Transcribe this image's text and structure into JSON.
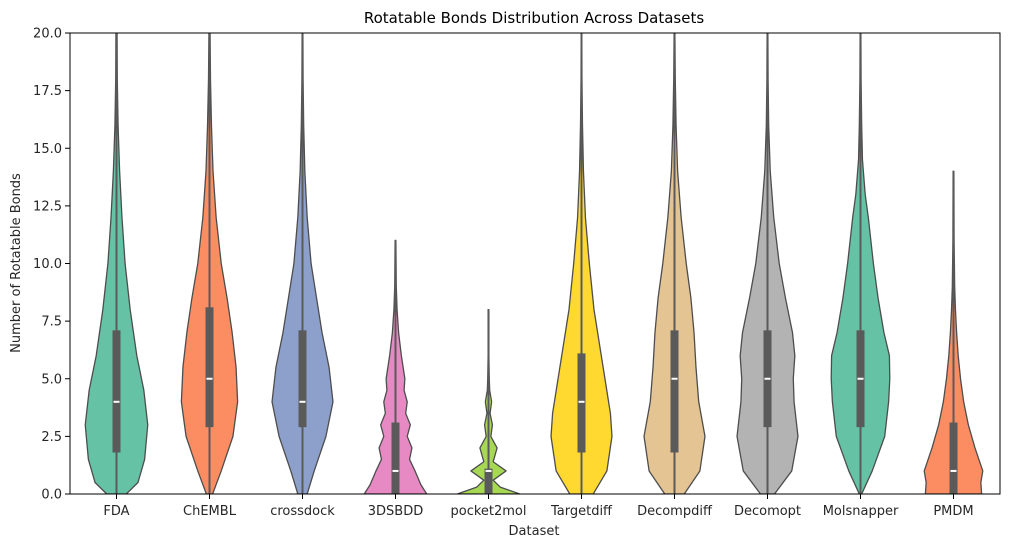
{
  "chart_data": {
    "type": "violin",
    "title": "Rotatable Bonds Distribution Across Datasets",
    "xlabel": "Dataset",
    "ylabel": "Number of Rotatable Bonds",
    "ylim": [
      0,
      20
    ],
    "yticks": [
      "0.0",
      "2.5",
      "5.0",
      "7.5",
      "10.0",
      "12.5",
      "15.0",
      "17.5",
      "20.0"
    ],
    "grid": false,
    "colors": {
      "outline": "#4d4d4d",
      "box": "#5a5a5a",
      "median": "#ffffff",
      "axis": "#000000"
    },
    "categories": [
      "FDA",
      "ChEMBL",
      "crossdock",
      "3DSBDD",
      "pocket2mol",
      "Targetdiff",
      "Decompdiff",
      "Decomopt",
      "Molsnapper",
      "PMDM"
    ],
    "series": [
      {
        "category": "FDA",
        "color": "#66c2a5",
        "min": 0,
        "q1": 1.8,
        "median": 4,
        "q3": 7.1,
        "max": 20,
        "whisker_low": 0,
        "whisker_high": 14,
        "profile": [
          [
            0,
            0.25
          ],
          [
            0.5,
            0.55
          ],
          [
            1.5,
            0.72
          ],
          [
            3,
            0.8
          ],
          [
            4.5,
            0.7
          ],
          [
            6,
            0.52
          ],
          [
            8,
            0.35
          ],
          [
            10,
            0.22
          ],
          [
            12,
            0.14
          ],
          [
            14,
            0.08
          ],
          [
            16,
            0.04
          ],
          [
            18,
            0.02
          ],
          [
            20,
            0.015
          ]
        ]
      },
      {
        "category": "ChEMBL",
        "color": "#fc8d62",
        "min": 0,
        "q1": 2.9,
        "median": 5,
        "q3": 8.1,
        "max": 20,
        "whisker_low": 0,
        "whisker_high": 15,
        "profile": [
          [
            0,
            0.08
          ],
          [
            1,
            0.3
          ],
          [
            2.5,
            0.6
          ],
          [
            4,
            0.72
          ],
          [
            5.5,
            0.68
          ],
          [
            7,
            0.58
          ],
          [
            8.5,
            0.45
          ],
          [
            10,
            0.3
          ],
          [
            12,
            0.17
          ],
          [
            14,
            0.09
          ],
          [
            16,
            0.05
          ],
          [
            18,
            0.025
          ],
          [
            20,
            0.015
          ]
        ]
      },
      {
        "category": "crossdock",
        "color": "#8da0cb",
        "min": 0,
        "q1": 2.9,
        "median": 4,
        "q3": 7.1,
        "max": 20,
        "whisker_low": 0,
        "whisker_high": 13,
        "profile": [
          [
            0,
            0.12
          ],
          [
            1,
            0.3
          ],
          [
            2.5,
            0.6
          ],
          [
            4,
            0.78
          ],
          [
            5.5,
            0.68
          ],
          [
            7,
            0.5
          ],
          [
            8.5,
            0.36
          ],
          [
            10,
            0.22
          ],
          [
            12,
            0.12
          ],
          [
            14,
            0.06
          ],
          [
            16,
            0.03
          ],
          [
            18,
            0.015
          ],
          [
            20,
            0.01
          ]
        ]
      },
      {
        "category": "3DSBDD",
        "color": "#e78ac3",
        "min": 0,
        "q1": 0,
        "median": 1,
        "q3": 3.1,
        "max": 11,
        "whisker_low": 0,
        "whisker_high": 7,
        "profile": [
          [
            0,
            0.8
          ],
          [
            0.4,
            0.65
          ],
          [
            1,
            0.5
          ],
          [
            1.5,
            0.36
          ],
          [
            2,
            0.42
          ],
          [
            2.5,
            0.3
          ],
          [
            3,
            0.38
          ],
          [
            3.5,
            0.26
          ],
          [
            4,
            0.3
          ],
          [
            4.5,
            0.22
          ],
          [
            5,
            0.24
          ],
          [
            6,
            0.15
          ],
          [
            7,
            0.08
          ],
          [
            8,
            0.04
          ],
          [
            9,
            0.02
          ],
          [
            11,
            0.01
          ]
        ]
      },
      {
        "category": "pocket2mol",
        "color": "#a6d854",
        "min": 0,
        "q1": 0,
        "median": 1,
        "q3": 1.1,
        "max": 8,
        "whisker_low": 0,
        "whisker_high": 2,
        "profile": [
          [
            0,
            0.8
          ],
          [
            0.3,
            0.3
          ],
          [
            0.6,
            0.12
          ],
          [
            1,
            0.45
          ],
          [
            1.4,
            0.12
          ],
          [
            2,
            0.22
          ],
          [
            2.5,
            0.06
          ],
          [
            3,
            0.1
          ],
          [
            3.5,
            0.04
          ],
          [
            4,
            0.08
          ],
          [
            4.5,
            0.03
          ],
          [
            5,
            0.02
          ],
          [
            6,
            0.01
          ],
          [
            8,
            0.01
          ]
        ]
      },
      {
        "category": "Targetdiff",
        "color": "#ffd92f",
        "min": 0,
        "q1": 1.8,
        "median": 4,
        "q3": 6.1,
        "max": 20,
        "whisker_low": 0,
        "whisker_high": 12,
        "profile": [
          [
            0,
            0.3
          ],
          [
            1,
            0.65
          ],
          [
            2.5,
            0.78
          ],
          [
            3.5,
            0.74
          ],
          [
            5,
            0.6
          ],
          [
            6.5,
            0.46
          ],
          [
            8,
            0.32
          ],
          [
            10,
            0.2
          ],
          [
            12,
            0.1
          ],
          [
            14,
            0.05
          ],
          [
            16,
            0.025
          ],
          [
            18,
            0.012
          ],
          [
            20,
            0.008
          ]
        ]
      },
      {
        "category": "Decompdiff",
        "color": "#e5c494",
        "min": 0,
        "q1": 1.8,
        "median": 5,
        "q3": 7.1,
        "max": 20,
        "whisker_low": 0,
        "whisker_high": 14,
        "profile": [
          [
            0,
            0.25
          ],
          [
            1,
            0.65
          ],
          [
            2.5,
            0.78
          ],
          [
            4,
            0.62
          ],
          [
            5.5,
            0.55
          ],
          [
            7,
            0.5
          ],
          [
            8.5,
            0.42
          ],
          [
            10,
            0.3
          ],
          [
            12,
            0.17
          ],
          [
            14,
            0.08
          ],
          [
            16,
            0.04
          ],
          [
            18,
            0.02
          ],
          [
            20,
            0.01
          ]
        ]
      },
      {
        "category": "Decomopt",
        "color": "#b3b3b3",
        "min": 0,
        "q1": 2.9,
        "median": 5,
        "q3": 7.1,
        "max": 20,
        "whisker_low": 0,
        "whisker_high": 13,
        "profile": [
          [
            0,
            0.18
          ],
          [
            1,
            0.62
          ],
          [
            2.5,
            0.78
          ],
          [
            4,
            0.68
          ],
          [
            5,
            0.66
          ],
          [
            6,
            0.7
          ],
          [
            7,
            0.64
          ],
          [
            8.5,
            0.46
          ],
          [
            10,
            0.3
          ],
          [
            12,
            0.16
          ],
          [
            14,
            0.07
          ],
          [
            16,
            0.03
          ],
          [
            18,
            0.015
          ],
          [
            20,
            0.01
          ]
        ]
      },
      {
        "category": "Molsnapper",
        "color": "#66c2a5",
        "min": 0,
        "q1": 2.9,
        "median": 5,
        "q3": 7.1,
        "max": 20,
        "whisker_low": 0,
        "whisker_high": 13,
        "profile": [
          [
            0,
            0.03
          ],
          [
            1,
            0.3
          ],
          [
            2.5,
            0.62
          ],
          [
            4,
            0.72
          ],
          [
            5,
            0.75
          ],
          [
            6,
            0.74
          ],
          [
            7,
            0.6
          ],
          [
            8.5,
            0.45
          ],
          [
            10,
            0.33
          ],
          [
            12,
            0.2
          ],
          [
            13,
            0.12
          ],
          [
            14.5,
            0.05
          ],
          [
            16,
            0.03
          ],
          [
            18,
            0.015
          ],
          [
            20,
            0.01
          ]
        ]
      },
      {
        "category": "PMDM",
        "color": "#fc8d62",
        "min": 0,
        "q1": 0,
        "median": 1,
        "q3": 3.1,
        "max": 14,
        "whisker_low": 0,
        "whisker_high": 7,
        "profile": [
          [
            0,
            0.72
          ],
          [
            0.5,
            0.7
          ],
          [
            1,
            0.75
          ],
          [
            2,
            0.55
          ],
          [
            3,
            0.38
          ],
          [
            4,
            0.26
          ],
          [
            5,
            0.18
          ],
          [
            6,
            0.12
          ],
          [
            7,
            0.08
          ],
          [
            8,
            0.05
          ],
          [
            9,
            0.03
          ],
          [
            11,
            0.015
          ],
          [
            14,
            0.01
          ]
        ]
      }
    ]
  }
}
